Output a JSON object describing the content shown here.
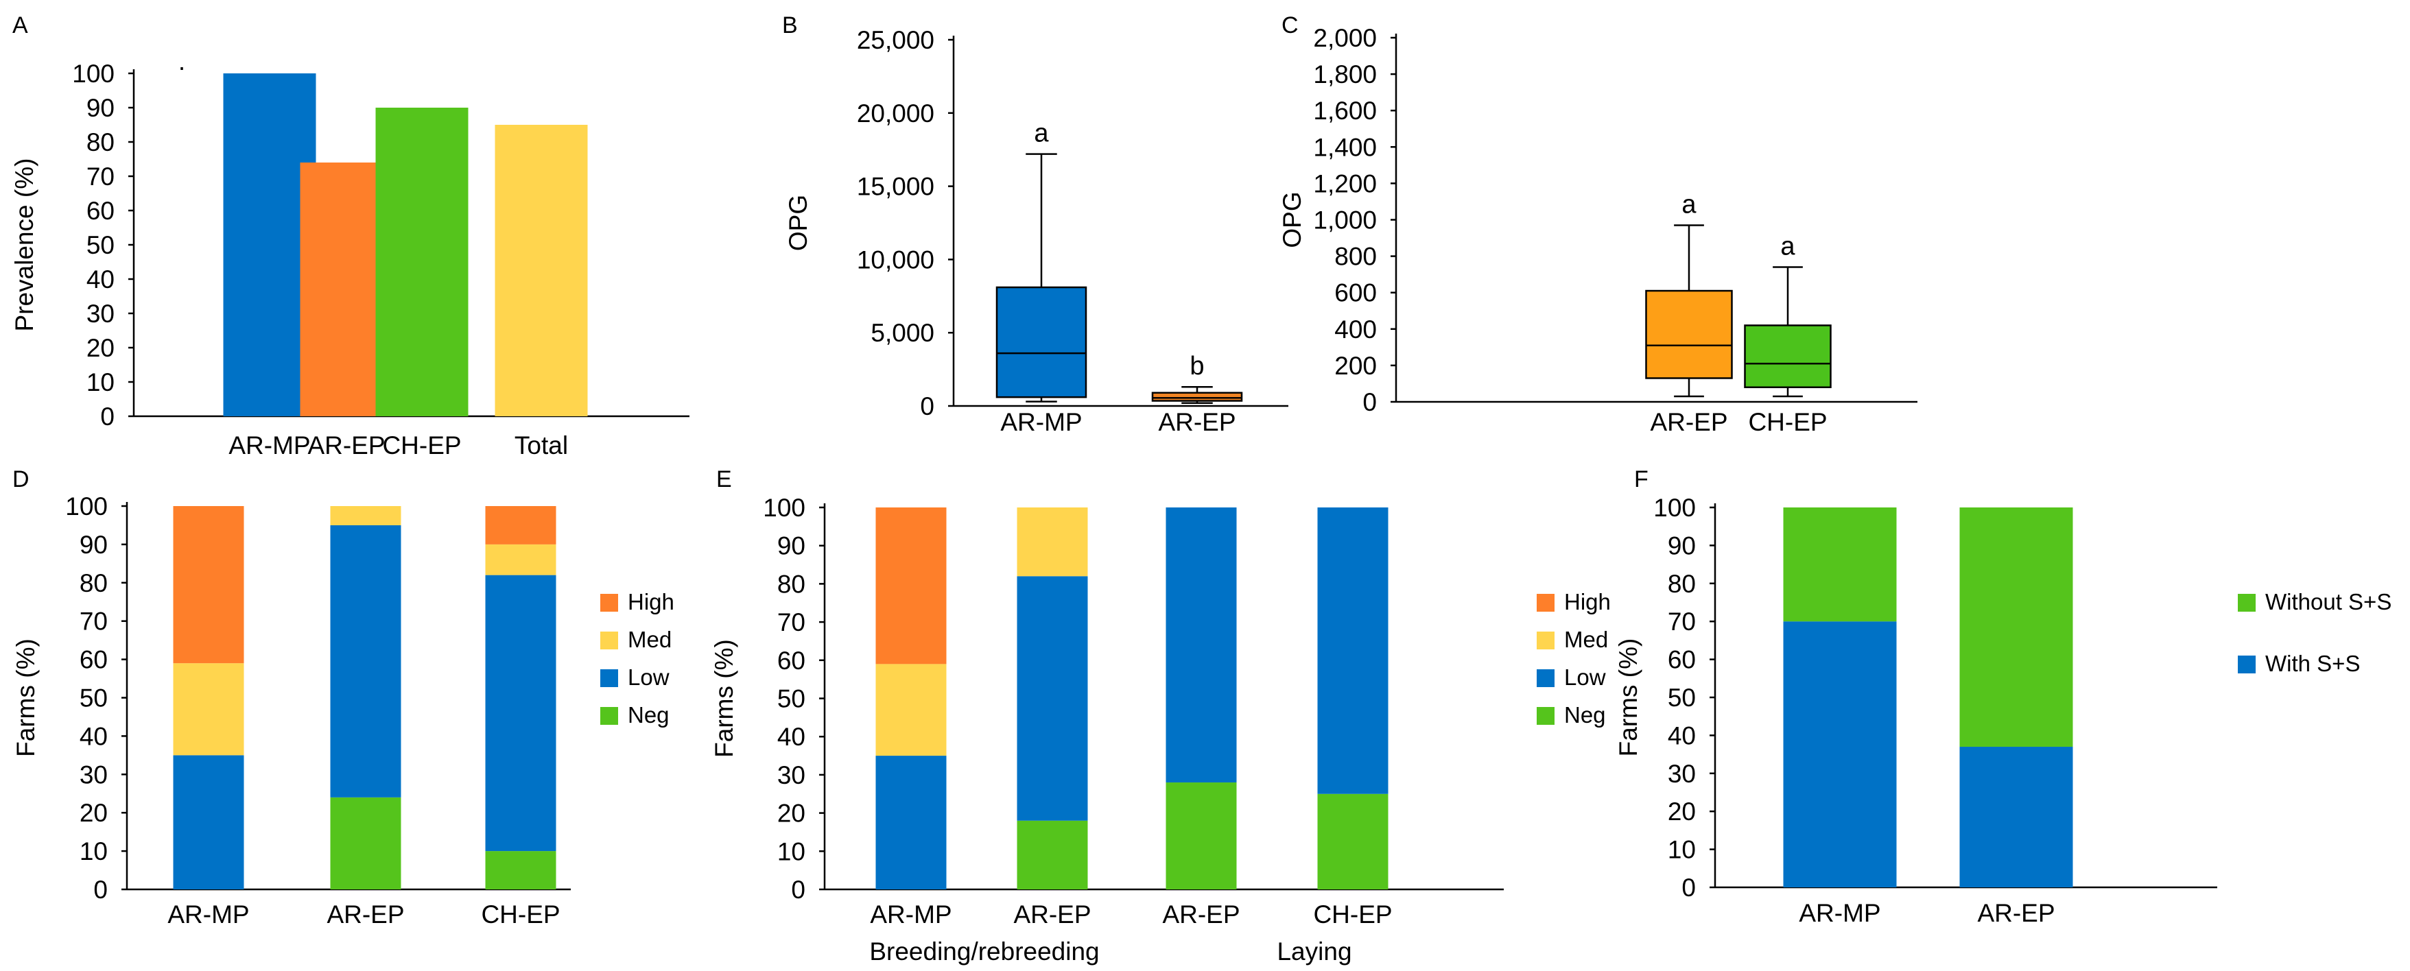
{
  "colors": {
    "blue": "#0072c6",
    "orange": "#fe7f2a",
    "green": "#55c41c",
    "yellow": "#ffd54e",
    "box_orange": "#f08424",
    "box_orange_c": "#fe9f16",
    "box_green": "#4cc21c"
  },
  "chart_data": [
    {
      "panel": "A",
      "type": "bar",
      "ylabel": "Prevalence (%)",
      "ylim": [
        0,
        100
      ],
      "yticks": [
        "0",
        "10",
        "20",
        "30",
        "40",
        "50",
        "60",
        "70",
        "80",
        "90",
        "100"
      ],
      "categories": [
        "AR-MP",
        "AR-EP",
        "CH-EP",
        "Total"
      ],
      "values": [
        100,
        74,
        90,
        85
      ],
      "bar_colors": [
        "blue",
        "orange",
        "green",
        "yellow"
      ]
    },
    {
      "panel": "B",
      "type": "boxplot",
      "ylabel": "OPG",
      "ylim": [
        0,
        25000
      ],
      "yticks": [
        "0",
        "5,000",
        "10,000",
        "15,000",
        "20,000",
        "25,000"
      ],
      "categories": [
        "AR-MP",
        "AR-EP"
      ],
      "boxes": [
        {
          "min": 300,
          "q1": 600,
          "median": 3600,
          "q3": 8100,
          "max": 17200,
          "letter": "a",
          "color": "blue"
        },
        {
          "min": 200,
          "q1": 350,
          "median": 550,
          "q3": 900,
          "max": 1300,
          "letter": "b",
          "color": "box_orange"
        }
      ]
    },
    {
      "panel": "C",
      "type": "boxplot",
      "ylabel": "OPG",
      "ylim": [
        0,
        2000
      ],
      "yticks": [
        "0",
        "200",
        "400",
        "600",
        "800",
        "1,000",
        "1,200",
        "1,400",
        "1,600",
        "1,800",
        "2,000"
      ],
      "categories": [
        "AR-EP",
        "CH-EP"
      ],
      "boxes": [
        {
          "min": 30,
          "q1": 130,
          "median": 310,
          "q3": 610,
          "max": 970,
          "letter": "a",
          "color": "box_orange_c"
        },
        {
          "min": 30,
          "q1": 80,
          "median": 210,
          "q3": 420,
          "max": 740,
          "letter": "a",
          "color": "box_green"
        }
      ]
    },
    {
      "panel": "D",
      "type": "stacked_bar",
      "ylabel": "Farms (%)",
      "ylim": [
        0,
        100
      ],
      "yticks": [
        "0",
        "10",
        "20",
        "30",
        "40",
        "50",
        "60",
        "70",
        "80",
        "90",
        "100"
      ],
      "categories": [
        "AR-MP",
        "AR-EP",
        "CH-EP"
      ],
      "series": [
        {
          "name": "Neg",
          "color": "green",
          "values": [
            0,
            24,
            10
          ]
        },
        {
          "name": "Low",
          "color": "blue",
          "values": [
            35,
            71,
            72
          ]
        },
        {
          "name": "Med",
          "color": "yellow",
          "values": [
            24,
            5,
            8
          ]
        },
        {
          "name": "High",
          "color": "orange",
          "values": [
            41,
            0,
            10
          ]
        }
      ],
      "legend": [
        "High",
        "Med",
        "Low",
        "Neg"
      ]
    },
    {
      "panel": "E",
      "type": "stacked_bar",
      "ylabel": "Farms (%)",
      "ylim": [
        0,
        100
      ],
      "yticks": [
        "0",
        "10",
        "20",
        "30",
        "40",
        "50",
        "60",
        "70",
        "80",
        "90",
        "100"
      ],
      "categories": [
        "AR-MP",
        "AR-EP",
        "AR-EP",
        "CH-EP"
      ],
      "groups": [
        "Breeding/rebreeding",
        "Laying"
      ],
      "series": [
        {
          "name": "Neg",
          "color": "green",
          "values": [
            0,
            18,
            28,
            25
          ]
        },
        {
          "name": "Low",
          "color": "blue",
          "values": [
            35,
            64,
            72,
            75
          ]
        },
        {
          "name": "Med",
          "color": "yellow",
          "values": [
            24,
            18,
            0,
            0
          ]
        },
        {
          "name": "High",
          "color": "orange",
          "values": [
            41,
            0,
            0,
            0
          ]
        }
      ],
      "legend": [
        "High",
        "Med",
        "Low",
        "Neg"
      ]
    },
    {
      "panel": "F",
      "type": "stacked_bar",
      "ylabel": "Farms (%)",
      "ylim": [
        0,
        100
      ],
      "yticks": [
        "0",
        "10",
        "20",
        "30",
        "40",
        "50",
        "60",
        "70",
        "80",
        "90",
        "100"
      ],
      "categories": [
        "AR-MP",
        "AR-EP"
      ],
      "series": [
        {
          "name": "With S+S",
          "color": "blue",
          "values": [
            70,
            37
          ]
        },
        {
          "name": "Without S+S",
          "color": "green",
          "values": [
            30,
            63
          ]
        }
      ],
      "legend": [
        "Without S+S",
        "With S+S"
      ]
    }
  ]
}
